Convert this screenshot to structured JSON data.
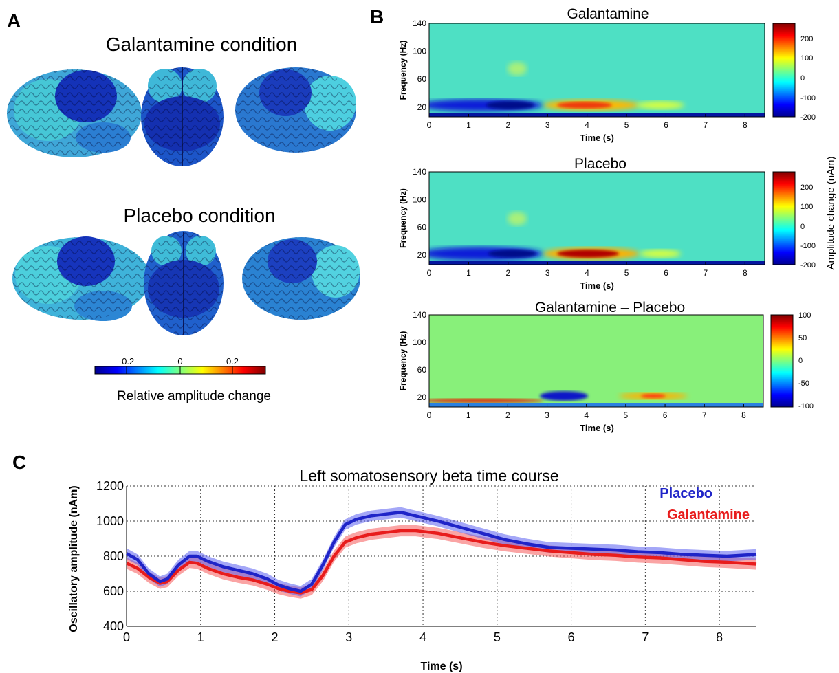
{
  "panels": {
    "a": "A",
    "b": "B",
    "c": "C"
  },
  "brain": {
    "galantamine_title": "Galantamine condition",
    "placebo_title": "Placebo condition",
    "colorbar_ticks": [
      "-0.2",
      "0",
      "0.2"
    ],
    "colorbar_label": "Relative amplitude change"
  },
  "spectrograms": {
    "ylabel": "Frequency (Hz)",
    "xlabel": "Time (s)",
    "shared_colorbar_label": "Amplitude change (nAm)",
    "y_ticks": [
      "140",
      "100",
      "60",
      "20"
    ],
    "x_ticks": [
      "0",
      "1",
      "2",
      "3",
      "4",
      "5",
      "6",
      "7",
      "8"
    ],
    "plots": [
      {
        "title": "Galantamine",
        "cbar_ticks": [
          "200",
          "100",
          "0",
          "-100",
          "-200"
        ]
      },
      {
        "title": "Placebo",
        "cbar_ticks": [
          "200",
          "100",
          "0",
          "-100",
          "-200"
        ]
      },
      {
        "title": "Galantamine – Placebo",
        "cbar_ticks": [
          "100",
          "50",
          "0",
          "-50",
          "-100"
        ]
      }
    ]
  },
  "chart_data": {
    "type": "line",
    "title": "Left somatosensory beta time course",
    "xlabel": "Time (s)",
    "ylabel": "Oscillatory amplitude (nAm)",
    "xlim": [
      0,
      8.5
    ],
    "ylim": [
      400,
      1200
    ],
    "x_ticks": [
      0,
      1,
      2,
      3,
      4,
      5,
      6,
      7,
      8
    ],
    "y_ticks": [
      400,
      600,
      800,
      1000,
      1200
    ],
    "grid": true,
    "legend_position": "top-right",
    "x": [
      0,
      0.15,
      0.3,
      0.45,
      0.55,
      0.7,
      0.85,
      0.95,
      1.1,
      1.3,
      1.5,
      1.7,
      1.9,
      2.05,
      2.2,
      2.35,
      2.5,
      2.65,
      2.8,
      2.95,
      3.1,
      3.3,
      3.5,
      3.7,
      3.9,
      4.2,
      4.5,
      4.8,
      5.1,
      5.4,
      5.7,
      6.0,
      6.3,
      6.6,
      6.9,
      7.2,
      7.5,
      7.8,
      8.1,
      8.5
    ],
    "series": [
      {
        "name": "Placebo",
        "color": "#1f24c8",
        "values": [
          815,
          780,
          700,
          655,
          670,
          750,
          800,
          800,
          770,
          740,
          720,
          700,
          670,
          635,
          615,
          600,
          640,
          750,
          880,
          980,
          1010,
          1030,
          1040,
          1050,
          1030,
          1000,
          965,
          930,
          895,
          870,
          850,
          845,
          840,
          835,
          825,
          820,
          810,
          805,
          800,
          810
        ]
      },
      {
        "name": "Galantamine",
        "color": "#e81c1c",
        "values": [
          760,
          730,
          680,
          645,
          655,
          720,
          765,
          760,
          730,
          700,
          680,
          665,
          640,
          615,
          600,
          590,
          610,
          690,
          800,
          880,
          905,
          925,
          935,
          945,
          945,
          930,
          905,
          880,
          860,
          845,
          830,
          820,
          810,
          805,
          795,
          790,
          780,
          770,
          765,
          755
        ]
      }
    ]
  }
}
